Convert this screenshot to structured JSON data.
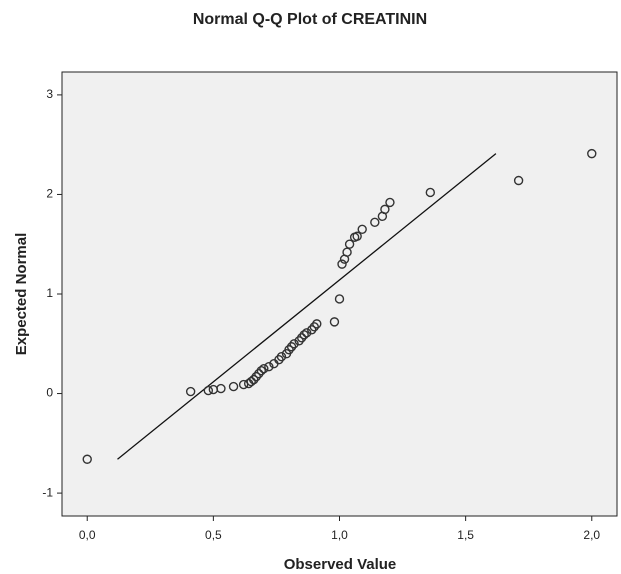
{
  "chart_data": {
    "type": "scatter",
    "title": "Normal Q-Q Plot of CREATININ",
    "x_label": "Observed Value",
    "y_label": "Expected Normal",
    "xlim": [
      -0.1,
      2.1
    ],
    "ylim": [
      -1.23,
      3.23
    ],
    "xticks": [
      {
        "value": 0,
        "label": "0,0"
      },
      {
        "value": 0.5,
        "label": "0,5"
      },
      {
        "value": 1,
        "label": "1,0"
      },
      {
        "value": 1.5,
        "label": "1,5"
      },
      {
        "value": 2,
        "label": "2,0"
      }
    ],
    "yticks": [
      -1,
      0,
      1,
      2,
      3
    ],
    "color": "#333333",
    "x": [
      0.0,
      0.41,
      0.48,
      0.5,
      0.53,
      0.58,
      0.62,
      0.64,
      0.65,
      0.66,
      0.67,
      0.68,
      0.69,
      0.7,
      0.72,
      0.74,
      0.76,
      0.77,
      0.79,
      0.8,
      0.81,
      0.82,
      0.84,
      0.85,
      0.86,
      0.87,
      0.89,
      0.9,
      0.91,
      0.98,
      1.0,
      1.01,
      1.02,
      1.03,
      1.04,
      1.06,
      1.07,
      1.09,
      1.14,
      1.17,
      1.18,
      1.2,
      1.36,
      1.71,
      2.0
    ],
    "values": [
      -0.66,
      0.02,
      0.03,
      0.04,
      0.05,
      0.07,
      0.09,
      0.1,
      0.12,
      0.14,
      0.17,
      0.2,
      0.23,
      0.25,
      0.27,
      0.3,
      0.34,
      0.37,
      0.4,
      0.44,
      0.47,
      0.5,
      0.53,
      0.56,
      0.59,
      0.61,
      0.64,
      0.67,
      0.7,
      0.72,
      0.95,
      1.3,
      1.35,
      1.42,
      1.5,
      1.57,
      1.58,
      1.65,
      1.72,
      1.78,
      1.85,
      1.92,
      2.02,
      2.14,
      2.41
    ],
    "reference_line": {
      "x": [
        0.12,
        1.62
      ],
      "y": [
        -0.66,
        2.41
      ]
    }
  }
}
